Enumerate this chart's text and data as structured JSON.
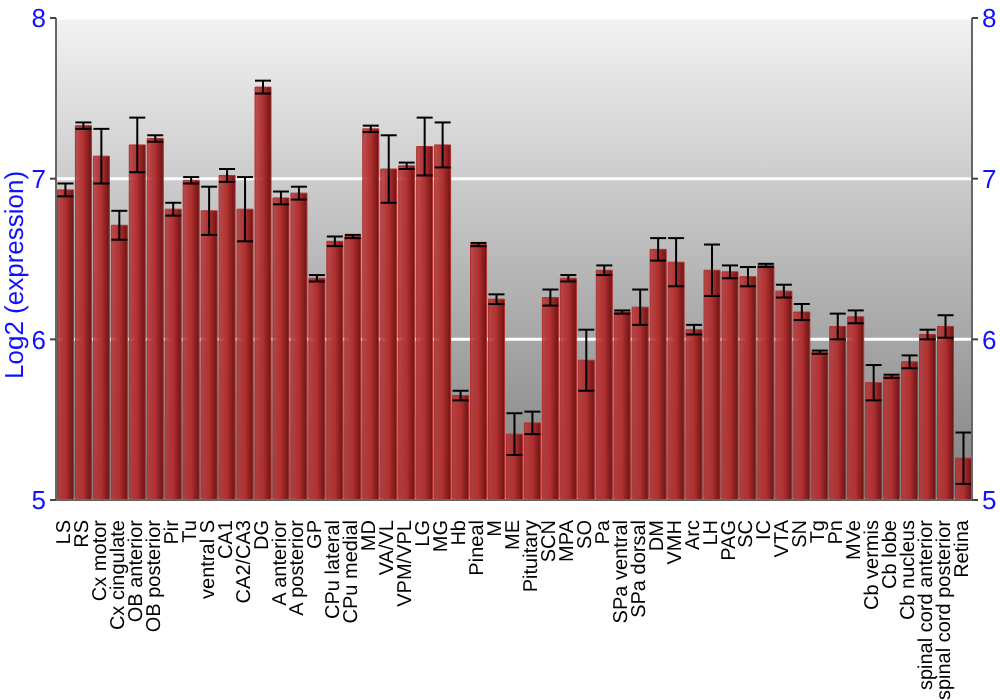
{
  "chart_data": {
    "type": "bar",
    "ylabel": "Log2 (expression)",
    "categories": [
      "LS",
      "RS",
      "Cx motor",
      "Cx cingulate",
      "OB anterior",
      "OB posterior",
      "Pir",
      "Tu",
      "ventral S",
      "CA1",
      "CA2/CA3",
      "DG",
      "A anterior",
      "A posterior",
      "GP",
      "CPu lateral",
      "CPu medial",
      "MD",
      "VA/VL",
      "VPM/VPL",
      "LG",
      "MG",
      "Hb",
      "Pineal",
      "M",
      "ME",
      "Pituitary",
      "SCN",
      "MPA",
      "SO",
      "Pa",
      "SPa ventral",
      "SPa dorsal",
      "DM",
      "VMH",
      "Arc",
      "LH",
      "PAG",
      "SC",
      "IC",
      "VTA",
      "SN",
      "Tg",
      "Pn",
      "MVe",
      "Cb vermis",
      "Cb lobe",
      "Cb nucleus",
      "spinal cord anterior",
      "spinal cord posterior",
      "Retina"
    ],
    "series": [
      {
        "color": "#b23030",
        "values": [
          6.93,
          7.33,
          7.14,
          6.71,
          7.21,
          7.25,
          6.81,
          6.99,
          6.8,
          7.02,
          6.81,
          7.57,
          6.88,
          6.91,
          6.38,
          6.61,
          6.64,
          7.31,
          7.06,
          7.08,
          7.2,
          7.21,
          5.65,
          6.59,
          6.25,
          5.41,
          5.48,
          6.26,
          6.38,
          5.87,
          6.43,
          6.17,
          6.2,
          6.56,
          6.48,
          6.06,
          6.43,
          6.42,
          6.39,
          6.46,
          6.3,
          6.17,
          5.92,
          6.08,
          6.14,
          5.73,
          5.77,
          5.86,
          6.03,
          6.08,
          5.26
        ],
        "errors": [
          0.04,
          0.02,
          0.17,
          0.09,
          0.17,
          0.02,
          0.04,
          0.02,
          0.15,
          0.04,
          0.2,
          0.04,
          0.04,
          0.04,
          0.02,
          0.03,
          0.01,
          0.02,
          0.21,
          0.02,
          0.18,
          0.14,
          0.03,
          0.01,
          0.03,
          0.13,
          0.07,
          0.05,
          0.02,
          0.19,
          0.03,
          0.01,
          0.11,
          0.07,
          0.15,
          0.03,
          0.16,
          0.04,
          0.06,
          0.01,
          0.04,
          0.05,
          0.01,
          0.08,
          0.04,
          0.11,
          0.01,
          0.04,
          0.03,
          0.07,
          0.16
        ]
      }
    ],
    "ylim": [
      5,
      8
    ],
    "yticks": [
      5,
      6,
      7,
      8
    ],
    "y2lim": [
      5,
      8
    ],
    "y2ticks": [
      5,
      6,
      7,
      8
    ],
    "grid": "y"
  }
}
